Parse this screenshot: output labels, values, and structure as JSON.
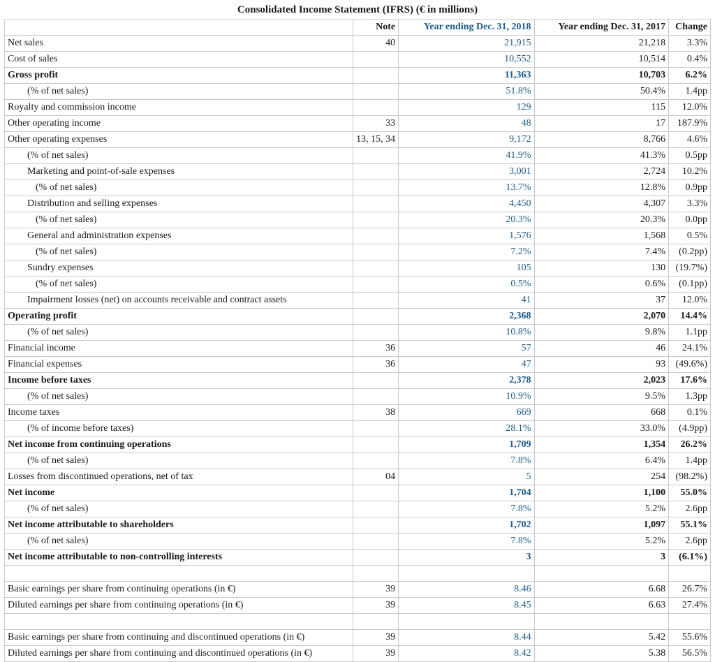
{
  "title": "Consolidated Income Statement (IFRS) (€ in millions)",
  "columns": {
    "label": "",
    "note": "Note",
    "y2018": "Year ending Dec. 31, 2018",
    "y2017": "Year ending Dec. 31, 2017",
    "change": "Change"
  },
  "col_widths": {
    "label": 500,
    "note": 64,
    "y2018": 195,
    "y2017": 193,
    "change": 60
  },
  "highlight_color": "#1f5c8b",
  "border_color": "#c9c9c9",
  "rows": [
    {
      "label": "Net sales",
      "indent": 0,
      "bold": false,
      "note": "40",
      "y2018": "21,915",
      "y2017": "21,218",
      "change": "3.3%"
    },
    {
      "label": "Cost of sales",
      "indent": 0,
      "bold": false,
      "note": "",
      "y2018": "10,552",
      "y2017": "10,514",
      "change": "0.4%"
    },
    {
      "label": "Gross profit",
      "indent": 0,
      "bold": true,
      "note": "",
      "y2018": "11,363",
      "y2017": "10,703",
      "change": "6.2%"
    },
    {
      "label": "(% of net sales)",
      "indent": 1,
      "bold": false,
      "note": "",
      "y2018": "51.8%",
      "y2017": "50.4%",
      "change": "1.4pp"
    },
    {
      "label": "Royalty and commission income",
      "indent": 0,
      "bold": false,
      "note": "",
      "y2018": "129",
      "y2017": "115",
      "change": "12.0%"
    },
    {
      "label": "Other operating income",
      "indent": 0,
      "bold": false,
      "note": "33",
      "y2018": "48",
      "y2017": "17",
      "change": "187.9%"
    },
    {
      "label": "Other operating expenses",
      "indent": 0,
      "bold": false,
      "note": "13, 15, 34",
      "y2018": "9,172",
      "y2017": "8,766",
      "change": "4.6%"
    },
    {
      "label": "(% of net sales)",
      "indent": 1,
      "bold": false,
      "note": "",
      "y2018": "41.9%",
      "y2017": "41.3%",
      "change": "0.5pp"
    },
    {
      "label": "Marketing and point-of-sale expenses",
      "indent": 1,
      "bold": false,
      "note": "",
      "y2018": "3,001",
      "y2017": "2,724",
      "change": "10.2%"
    },
    {
      "label": "(% of net sales)",
      "indent": 2,
      "bold": false,
      "note": "",
      "y2018": "13.7%",
      "y2017": "12.8%",
      "change": "0.9pp"
    },
    {
      "label": "Distribution and selling expenses",
      "indent": 1,
      "bold": false,
      "note": "",
      "y2018": "4,450",
      "y2017": "4,307",
      "change": "3.3%"
    },
    {
      "label": "(% of net sales)",
      "indent": 2,
      "bold": false,
      "note": "",
      "y2018": "20.3%",
      "y2017": "20.3%",
      "change": "0.0pp"
    },
    {
      "label": "General and administration expenses",
      "indent": 1,
      "bold": false,
      "note": "",
      "y2018": "1,576",
      "y2017": "1,568",
      "change": "0.5%"
    },
    {
      "label": "(% of net sales)",
      "indent": 2,
      "bold": false,
      "note": "",
      "y2018": "7.2%",
      "y2017": "7.4%",
      "change": "(0.2pp)"
    },
    {
      "label": "Sundry expenses",
      "indent": 1,
      "bold": false,
      "note": "",
      "y2018": "105",
      "y2017": "130",
      "change": "(19.7%)"
    },
    {
      "label": "(% of net sales)",
      "indent": 2,
      "bold": false,
      "note": "",
      "y2018": "0.5%",
      "y2017": "0.6%",
      "change": "(0.1pp)"
    },
    {
      "label": "Impairment losses (net) on accounts receivable and contract assets",
      "indent": 1,
      "bold": false,
      "note": "",
      "y2018": "41",
      "y2017": "37",
      "change": "12.0%"
    },
    {
      "label": "Operating profit",
      "indent": 0,
      "bold": true,
      "note": "",
      "y2018": "2,368",
      "y2017": "2,070",
      "change": "14.4%"
    },
    {
      "label": "(% of net sales)",
      "indent": 1,
      "bold": false,
      "note": "",
      "y2018": "10.8%",
      "y2017": "9.8%",
      "change": "1.1pp"
    },
    {
      "label": "Financial income",
      "indent": 0,
      "bold": false,
      "note": "36",
      "y2018": "57",
      "y2017": "46",
      "change": "24.1%"
    },
    {
      "label": "Financial expenses",
      "indent": 0,
      "bold": false,
      "note": "36",
      "y2018": "47",
      "y2017": "93",
      "change": "(49.6%)"
    },
    {
      "label": "Income before taxes",
      "indent": 0,
      "bold": true,
      "note": "",
      "y2018": "2,378",
      "y2017": "2,023",
      "change": "17.6%"
    },
    {
      "label": "(% of net sales)",
      "indent": 1,
      "bold": false,
      "note": "",
      "y2018": "10.9%",
      "y2017": "9.5%",
      "change": "1.3pp"
    },
    {
      "label": "Income taxes",
      "indent": 0,
      "bold": false,
      "note": "38",
      "y2018": "669",
      "y2017": "668",
      "change": "0.1%"
    },
    {
      "label": "(% of income before taxes)",
      "indent": 1,
      "bold": false,
      "note": "",
      "y2018": "28.1%",
      "y2017": "33.0%",
      "change": "(4.9pp)"
    },
    {
      "label": "Net income from continuing operations",
      "indent": 0,
      "bold": true,
      "note": "",
      "y2018": "1,709",
      "y2017": "1,354",
      "change": "26.2%"
    },
    {
      "label": "(% of net sales)",
      "indent": 1,
      "bold": false,
      "note": "",
      "y2018": "7.8%",
      "y2017": "6.4%",
      "change": "1.4pp"
    },
    {
      "label": "Losses from discontinued operations, net of tax",
      "indent": 0,
      "bold": false,
      "note": "04",
      "y2018": "5",
      "y2017": "254",
      "change": "(98.2%)"
    },
    {
      "label": "Net income",
      "indent": 0,
      "bold": true,
      "note": "",
      "y2018": "1,704",
      "y2017": "1,100",
      "change": "55.0%"
    },
    {
      "label": "(% of net sales)",
      "indent": 1,
      "bold": false,
      "note": "",
      "y2018": "7.8%",
      "y2017": "5.2%",
      "change": "2.6pp"
    },
    {
      "label": "Net income attributable to shareholders",
      "indent": 0,
      "bold": true,
      "note": "",
      "y2018": "1,702",
      "y2017": "1,097",
      "change": "55.1%"
    },
    {
      "label": "(% of net sales)",
      "indent": 1,
      "bold": false,
      "note": "",
      "y2018": "7.8%",
      "y2017": "5.2%",
      "change": "2.6pp"
    },
    {
      "label": "Net income attributable to non-controlling interests",
      "indent": 0,
      "bold": true,
      "note": "",
      "y2018": "3",
      "y2017": "3",
      "change": "(6.1%)"
    },
    {
      "label": "",
      "indent": 0,
      "bold": false,
      "note": "",
      "y2018": "",
      "y2017": "",
      "change": ""
    },
    {
      "label": "Basic earnings per share from continuing operations (in €)",
      "indent": 0,
      "bold": false,
      "note": "39",
      "y2018": "8.46",
      "y2017": "6.68",
      "change": "26.7%"
    },
    {
      "label": "Diluted earnings per share from continuing operations (in €)",
      "indent": 0,
      "bold": false,
      "note": "39",
      "y2018": "8.45",
      "y2017": "6.63",
      "change": "27.4%"
    },
    {
      "label": "",
      "indent": 0,
      "bold": false,
      "note": "",
      "y2018": "",
      "y2017": "",
      "change": ""
    },
    {
      "label": "Basic earnings per share from continuing and discontinued operations (in €)",
      "indent": 0,
      "bold": false,
      "note": "39",
      "y2018": "8.44",
      "y2017": "5.42",
      "change": "55.6%"
    },
    {
      "label": "Diluted earnings per share from continuing and discontinued operations (in €)",
      "indent": 0,
      "bold": false,
      "note": "39",
      "y2018": "8.42",
      "y2017": "5.38",
      "change": "56.5%"
    }
  ]
}
